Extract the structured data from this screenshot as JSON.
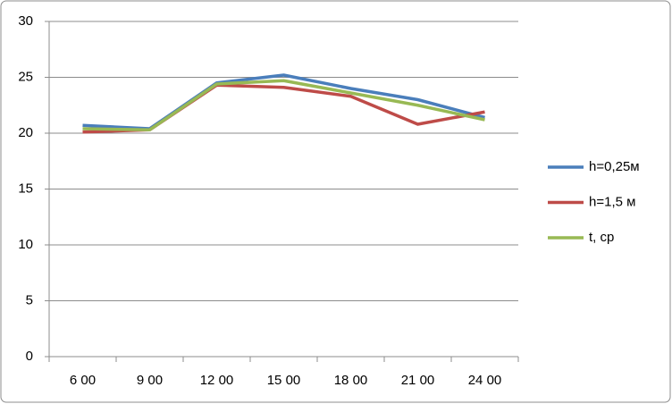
{
  "chart_data": {
    "type": "line",
    "categories": [
      "6 00",
      "9 00",
      "12 00",
      "15 00",
      "18 00",
      "21 00",
      "24 00"
    ],
    "series": [
      {
        "name": "h=0,25м",
        "color": "#4a7ebb",
        "values": [
          20.7,
          20.4,
          24.5,
          25.2,
          24.0,
          23.0,
          21.4
        ]
      },
      {
        "name": "h=1,5 м",
        "color": "#be4b48",
        "values": [
          20.1,
          20.3,
          24.3,
          24.1,
          23.3,
          20.8,
          21.9
        ]
      },
      {
        "name": "t, ср",
        "color": "#98b954",
        "values": [
          20.4,
          20.3,
          24.4,
          24.7,
          23.6,
          22.5,
          21.2
        ]
      }
    ],
    "ylim": [
      0,
      30
    ],
    "yticks": [
      0,
      5,
      10,
      15,
      20,
      25,
      30
    ],
    "grid": true,
    "legend": "right"
  }
}
